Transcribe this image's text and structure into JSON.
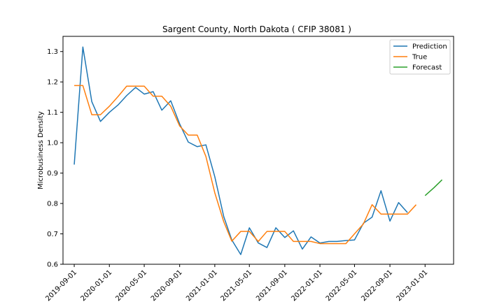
{
  "chart_data": {
    "type": "line",
    "title": "Sargent County, North Dakota ( CFIP 38081 )",
    "xlabel": "",
    "ylabel": "Microbusiness Density",
    "xlim": [
      "2019-07-24",
      "2023-04-10"
    ],
    "ylim": [
      0.6,
      1.35
    ],
    "x_ticks": [
      "2019-09-01",
      "2020-01-01",
      "2020-05-01",
      "2020-09-01",
      "2021-01-01",
      "2021-05-01",
      "2021-09-01",
      "2022-01-01",
      "2022-05-01",
      "2022-09-01",
      "2023-01-01"
    ],
    "y_ticks": [
      0.6,
      0.7,
      0.8,
      0.9,
      1.0,
      1.1,
      1.2,
      1.3
    ],
    "grid": false,
    "legend": "top-right",
    "series": [
      {
        "name": "Prediction",
        "color": "#1f77b4",
        "x": [
          "2019-09-01",
          "2019-10-01",
          "2019-11-01",
          "2019-12-01",
          "2020-01-01",
          "2020-02-01",
          "2020-03-01",
          "2020-04-01",
          "2020-05-01",
          "2020-06-01",
          "2020-07-01",
          "2020-08-01",
          "2020-09-01",
          "2020-10-01",
          "2020-11-01",
          "2020-12-01",
          "2021-01-01",
          "2021-02-01",
          "2021-03-01",
          "2021-04-01",
          "2021-05-01",
          "2021-06-01",
          "2021-07-01",
          "2021-08-01",
          "2021-09-01",
          "2021-10-01",
          "2021-11-01",
          "2021-12-01",
          "2022-01-01",
          "2022-02-01",
          "2022-03-01",
          "2022-04-01",
          "2022-05-01",
          "2022-06-01",
          "2022-07-01",
          "2022-08-01",
          "2022-09-01",
          "2022-10-01",
          "2022-11-01"
        ],
        "y": [
          0.928,
          1.315,
          1.135,
          1.07,
          1.1,
          1.125,
          1.155,
          1.182,
          1.16,
          1.168,
          1.107,
          1.138,
          1.062,
          1.002,
          0.987,
          0.993,
          0.888,
          0.757,
          0.68,
          0.632,
          0.72,
          0.67,
          0.655,
          0.72,
          0.688,
          0.71,
          0.65,
          0.69,
          0.67,
          0.675,
          0.675,
          0.678,
          0.68,
          0.735,
          0.755,
          0.842,
          0.742,
          0.803,
          0.77
        ]
      },
      {
        "name": "True",
        "color": "#ff7f0e",
        "x": [
          "2019-09-01",
          "2019-10-01",
          "2019-11-01",
          "2019-12-01",
          "2020-01-01",
          "2020-02-01",
          "2020-03-01",
          "2020-04-01",
          "2020-05-01",
          "2020-06-01",
          "2020-07-01",
          "2020-08-01",
          "2020-09-01",
          "2020-10-01",
          "2020-11-01",
          "2020-12-01",
          "2021-01-01",
          "2021-02-01",
          "2021-03-01",
          "2021-04-01",
          "2021-05-01",
          "2021-06-01",
          "2021-07-01",
          "2021-08-01",
          "2021-09-01",
          "2021-10-01",
          "2021-11-01",
          "2021-12-01",
          "2022-01-01",
          "2022-02-01",
          "2022-03-01",
          "2022-04-01",
          "2022-05-01",
          "2022-06-01",
          "2022-07-01",
          "2022-08-01",
          "2022-09-01",
          "2022-10-01",
          "2022-11-01",
          "2022-12-01"
        ],
        "y": [
          1.188,
          1.188,
          1.092,
          1.092,
          1.12,
          1.153,
          1.186,
          1.186,
          1.186,
          1.153,
          1.153,
          1.12,
          1.055,
          1.025,
          1.025,
          0.955,
          0.835,
          0.74,
          0.676,
          0.708,
          0.708,
          0.675,
          0.708,
          0.708,
          0.708,
          0.675,
          0.675,
          0.675,
          0.668,
          0.668,
          0.668,
          0.668,
          0.7,
          0.733,
          0.796,
          0.765,
          0.765,
          0.765,
          0.765,
          0.796
        ]
      },
      {
        "name": "Forecast",
        "color": "#2ca02c",
        "x": [
          "2023-01-01",
          "2023-02-01",
          "2023-03-01"
        ],
        "y": [
          0.826,
          0.852,
          0.878
        ]
      }
    ]
  }
}
